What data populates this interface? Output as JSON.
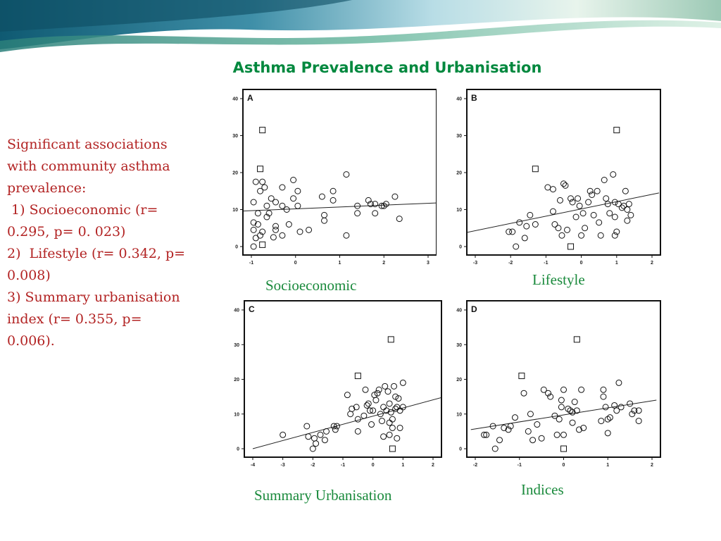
{
  "slide": {
    "title": "Asthma Prevalence and Urbanisation",
    "text_lines": [
      "Significant associations",
      "with community asthma",
      "prevalence:",
      " 1) Socioeconomic (r=",
      "0.295, p= 0. 023)",
      "2)  Lifestyle (r= 0.342, p=",
      "0.008)",
      "3) Summary urbanisation",
      "index (r= 0.355, p=",
      "0.006)."
    ],
    "colors": {
      "title": "#00883e",
      "body_text": "#b22222",
      "caption": "#1a8a3c",
      "banner": "#1d6d8f"
    }
  },
  "chart_data": [
    {
      "type": "scatter",
      "panel": "A",
      "caption": "Socioeconomic",
      "xlim": [
        -1,
        3
      ],
      "ylim": [
        0,
        40
      ],
      "xticks": [
        -1,
        0,
        1,
        2,
        3
      ],
      "yticks": [
        0,
        10,
        20,
        30,
        40
      ],
      "grid": false,
      "fit_line": [
        [
          -1.2,
          9.6
        ],
        [
          3.2,
          11.8
        ]
      ],
      "circles": [
        [
          -0.95,
          12
        ],
        [
          -0.95,
          6.5
        ],
        [
          -0.95,
          4.5
        ],
        [
          -0.9,
          2.3
        ],
        [
          -0.95,
          0
        ],
        [
          -0.9,
          17.5
        ],
        [
          -0.85,
          9
        ],
        [
          -0.85,
          6
        ],
        [
          -0.8,
          15
        ],
        [
          -0.8,
          3
        ],
        [
          -0.75,
          17.5
        ],
        [
          -0.75,
          4
        ],
        [
          -0.7,
          16
        ],
        [
          -0.65,
          11
        ],
        [
          -0.65,
          8
        ],
        [
          -0.55,
          13
        ],
        [
          -0.45,
          12
        ],
        [
          -0.45,
          5.5
        ],
        [
          -0.45,
          4.5
        ],
        [
          -0.3,
          16
        ],
        [
          -0.3,
          11
        ],
        [
          -0.3,
          3
        ],
        [
          -0.2,
          10
        ],
        [
          -0.15,
          6
        ],
        [
          -0.05,
          18
        ],
        [
          -0.05,
          13
        ],
        [
          0.05,
          15
        ],
        [
          0.05,
          11
        ],
        [
          0.1,
          4
        ],
        [
          0.3,
          4.5
        ],
        [
          0.6,
          13.5
        ],
        [
          0.65,
          7
        ],
        [
          0.65,
          8.5
        ],
        [
          0.85,
          15
        ],
        [
          0.85,
          12.5
        ],
        [
          1.15,
          19.5
        ],
        [
          1.15,
          3
        ],
        [
          1.4,
          11
        ],
        [
          1.4,
          9
        ],
        [
          1.65,
          12.5
        ],
        [
          1.7,
          11.5
        ],
        [
          1.8,
          11.5
        ],
        [
          1.8,
          9
        ],
        [
          1.95,
          11
        ],
        [
          2.0,
          11
        ],
        [
          2.05,
          11.5
        ],
        [
          2.25,
          13.5
        ],
        [
          2.35,
          7.5
        ],
        [
          -0.6,
          9
        ],
        [
          -0.5,
          2.5
        ]
      ],
      "squares": [
        [
          -0.75,
          31.5
        ],
        [
          -0.8,
          21
        ],
        [
          -0.75,
          0.5
        ]
      ]
    },
    {
      "type": "scatter",
      "panel": "B",
      "caption": "Lifestyle",
      "xlim": [
        -3,
        2
      ],
      "ylim": [
        0,
        40
      ],
      "xticks": [
        -3,
        -2,
        -1,
        0,
        1,
        2
      ],
      "yticks": [
        0,
        10,
        20,
        30,
        40
      ],
      "grid": false,
      "fit_line": [
        [
          -3.3,
          3.7
        ],
        [
          2.2,
          14.5
        ]
      ],
      "circles": [
        [
          -2.05,
          4
        ],
        [
          -1.95,
          4
        ],
        [
          -1.85,
          0
        ],
        [
          -1.75,
          6.5
        ],
        [
          -1.6,
          2.3
        ],
        [
          -1.55,
          5.5
        ],
        [
          -1.45,
          8.5
        ],
        [
          -1.3,
          6
        ],
        [
          -0.95,
          16
        ],
        [
          -0.8,
          15.5
        ],
        [
          -0.8,
          9.5
        ],
        [
          -0.75,
          6
        ],
        [
          -0.65,
          5
        ],
        [
          -0.55,
          3
        ],
        [
          -0.5,
          17
        ],
        [
          -0.45,
          16.5
        ],
        [
          -0.4,
          4.5
        ],
        [
          -0.3,
          13
        ],
        [
          -0.25,
          12
        ],
        [
          -0.15,
          8
        ],
        [
          -0.1,
          13
        ],
        [
          -0.05,
          11
        ],
        [
          0.0,
          3
        ],
        [
          0.05,
          9
        ],
        [
          0.1,
          5
        ],
        [
          0.2,
          12
        ],
        [
          0.25,
          15
        ],
        [
          0.3,
          14
        ],
        [
          0.35,
          8.5
        ],
        [
          0.45,
          15
        ],
        [
          0.5,
          6.5
        ],
        [
          0.55,
          3
        ],
        [
          0.65,
          18
        ],
        [
          0.7,
          13
        ],
        [
          0.75,
          11.5
        ],
        [
          0.9,
          19.5
        ],
        [
          0.95,
          12
        ],
        [
          0.95,
          8
        ],
        [
          0.95,
          3
        ],
        [
          1.0,
          4
        ],
        [
          1.05,
          11.5
        ],
        [
          1.15,
          10.5
        ],
        [
          1.2,
          11
        ],
        [
          1.25,
          15
        ],
        [
          1.3,
          10
        ],
        [
          1.3,
          7
        ],
        [
          1.35,
          11.5
        ],
        [
          1.4,
          8.5
        ],
        [
          -0.6,
          12.5
        ],
        [
          0.8,
          9
        ]
      ],
      "squares": [
        [
          -1.3,
          21
        ],
        [
          1.0,
          31.5
        ],
        [
          -0.3,
          0
        ]
      ]
    },
    {
      "type": "scatter",
      "panel": "C",
      "caption": "Summary Urbanisation",
      "xlim": [
        -4,
        2
      ],
      "ylim": [
        0,
        40
      ],
      "xticks": [
        -4,
        -3,
        -2,
        -1,
        0,
        1,
        2
      ],
      "yticks": [
        0,
        10,
        20,
        30,
        40
      ],
      "grid": false,
      "fit_line": [
        [
          -4.0,
          0.0
        ],
        [
          2.6,
          15.5
        ]
      ],
      "circles": [
        [
          -3.0,
          4
        ],
        [
          -2.2,
          6.5
        ],
        [
          -2.15,
          3.5
        ],
        [
          -2.0,
          0
        ],
        [
          -1.9,
          1.5
        ],
        [
          -1.75,
          4
        ],
        [
          -1.6,
          2.5
        ],
        [
          -1.55,
          5
        ],
        [
          -1.3,
          6.5
        ],
        [
          -1.25,
          5.5
        ],
        [
          -1.2,
          6.5
        ],
        [
          -0.85,
          15.5
        ],
        [
          -0.75,
          10
        ],
        [
          -0.7,
          11.5
        ],
        [
          -0.55,
          12
        ],
        [
          -0.5,
          8.5
        ],
        [
          -0.5,
          5
        ],
        [
          -0.3,
          9.5
        ],
        [
          -0.25,
          17
        ],
        [
          -0.2,
          12.5
        ],
        [
          -0.15,
          13
        ],
        [
          -0.1,
          11
        ],
        [
          -0.05,
          7
        ],
        [
          0.0,
          11
        ],
        [
          0.05,
          15.5
        ],
        [
          0.1,
          14
        ],
        [
          0.15,
          16
        ],
        [
          0.2,
          17
        ],
        [
          0.25,
          10
        ],
        [
          0.3,
          8
        ],
        [
          0.35,
          12
        ],
        [
          0.35,
          3.5
        ],
        [
          0.4,
          18
        ],
        [
          0.45,
          11
        ],
        [
          0.5,
          16.5
        ],
        [
          0.55,
          13
        ],
        [
          0.55,
          7.5
        ],
        [
          0.6,
          10.5
        ],
        [
          0.65,
          8.5
        ],
        [
          0.65,
          6
        ],
        [
          0.7,
          18
        ],
        [
          0.75,
          15
        ],
        [
          0.75,
          11.5
        ],
        [
          0.8,
          12
        ],
        [
          0.8,
          3
        ],
        [
          0.85,
          14.5
        ],
        [
          0.9,
          11
        ],
        [
          0.9,
          6
        ],
        [
          1.0,
          19
        ],
        [
          1.0,
          12
        ],
        [
          -1.95,
          3
        ],
        [
          0.55,
          4
        ]
      ],
      "squares": [
        [
          0.6,
          31.5
        ],
        [
          -0.5,
          21
        ],
        [
          0.65,
          0
        ]
      ]
    },
    {
      "type": "scatter",
      "panel": "D",
      "caption": "Indices",
      "xlim": [
        -2,
        2
      ],
      "ylim": [
        0,
        40
      ],
      "xticks": [
        -2,
        -1,
        0,
        1,
        2
      ],
      "yticks": [
        0,
        10,
        20,
        30,
        40
      ],
      "grid": false,
      "fit_line": [
        [
          -2.1,
          5.5
        ],
        [
          2.1,
          14.0
        ]
      ],
      "circles": [
        [
          -1.8,
          4
        ],
        [
          -1.75,
          4
        ],
        [
          -1.6,
          6.5
        ],
        [
          -1.55,
          0
        ],
        [
          -1.45,
          2.5
        ],
        [
          -1.35,
          6
        ],
        [
          -1.25,
          5.5
        ],
        [
          -1.2,
          6.5
        ],
        [
          -1.1,
          9
        ],
        [
          -0.9,
          16
        ],
        [
          -0.8,
          5
        ],
        [
          -0.75,
          10
        ],
        [
          -0.7,
          2.5
        ],
        [
          -0.5,
          3
        ],
        [
          -0.45,
          17
        ],
        [
          -0.35,
          16
        ],
        [
          -0.3,
          15
        ],
        [
          -0.2,
          9.5
        ],
        [
          -0.15,
          4
        ],
        [
          -0.1,
          8.5
        ],
        [
          -0.05,
          12
        ],
        [
          -0.05,
          14
        ],
        [
          0.0,
          17
        ],
        [
          0.0,
          4
        ],
        [
          0.1,
          11.5
        ],
        [
          0.15,
          11
        ],
        [
          0.2,
          10.5
        ],
        [
          0.25,
          13.5
        ],
        [
          0.3,
          11
        ],
        [
          0.35,
          5.5
        ],
        [
          0.4,
          17
        ],
        [
          0.45,
          6
        ],
        [
          0.9,
          17
        ],
        [
          0.9,
          15
        ],
        [
          0.95,
          12
        ],
        [
          1.0,
          8.5
        ],
        [
          1.0,
          4.5
        ],
        [
          1.05,
          9
        ],
        [
          1.15,
          12.5
        ],
        [
          1.2,
          11
        ],
        [
          1.25,
          19
        ],
        [
          1.3,
          12
        ],
        [
          1.5,
          13
        ],
        [
          1.55,
          10
        ],
        [
          1.6,
          11
        ],
        [
          1.7,
          11
        ],
        [
          1.7,
          8
        ],
        [
          0.85,
          8
        ],
        [
          -0.6,
          7
        ],
        [
          0.2,
          7.5
        ]
      ],
      "squares": [
        [
          -0.95,
          21
        ],
        [
          0.3,
          31.5
        ],
        [
          0.0,
          0
        ]
      ]
    }
  ]
}
